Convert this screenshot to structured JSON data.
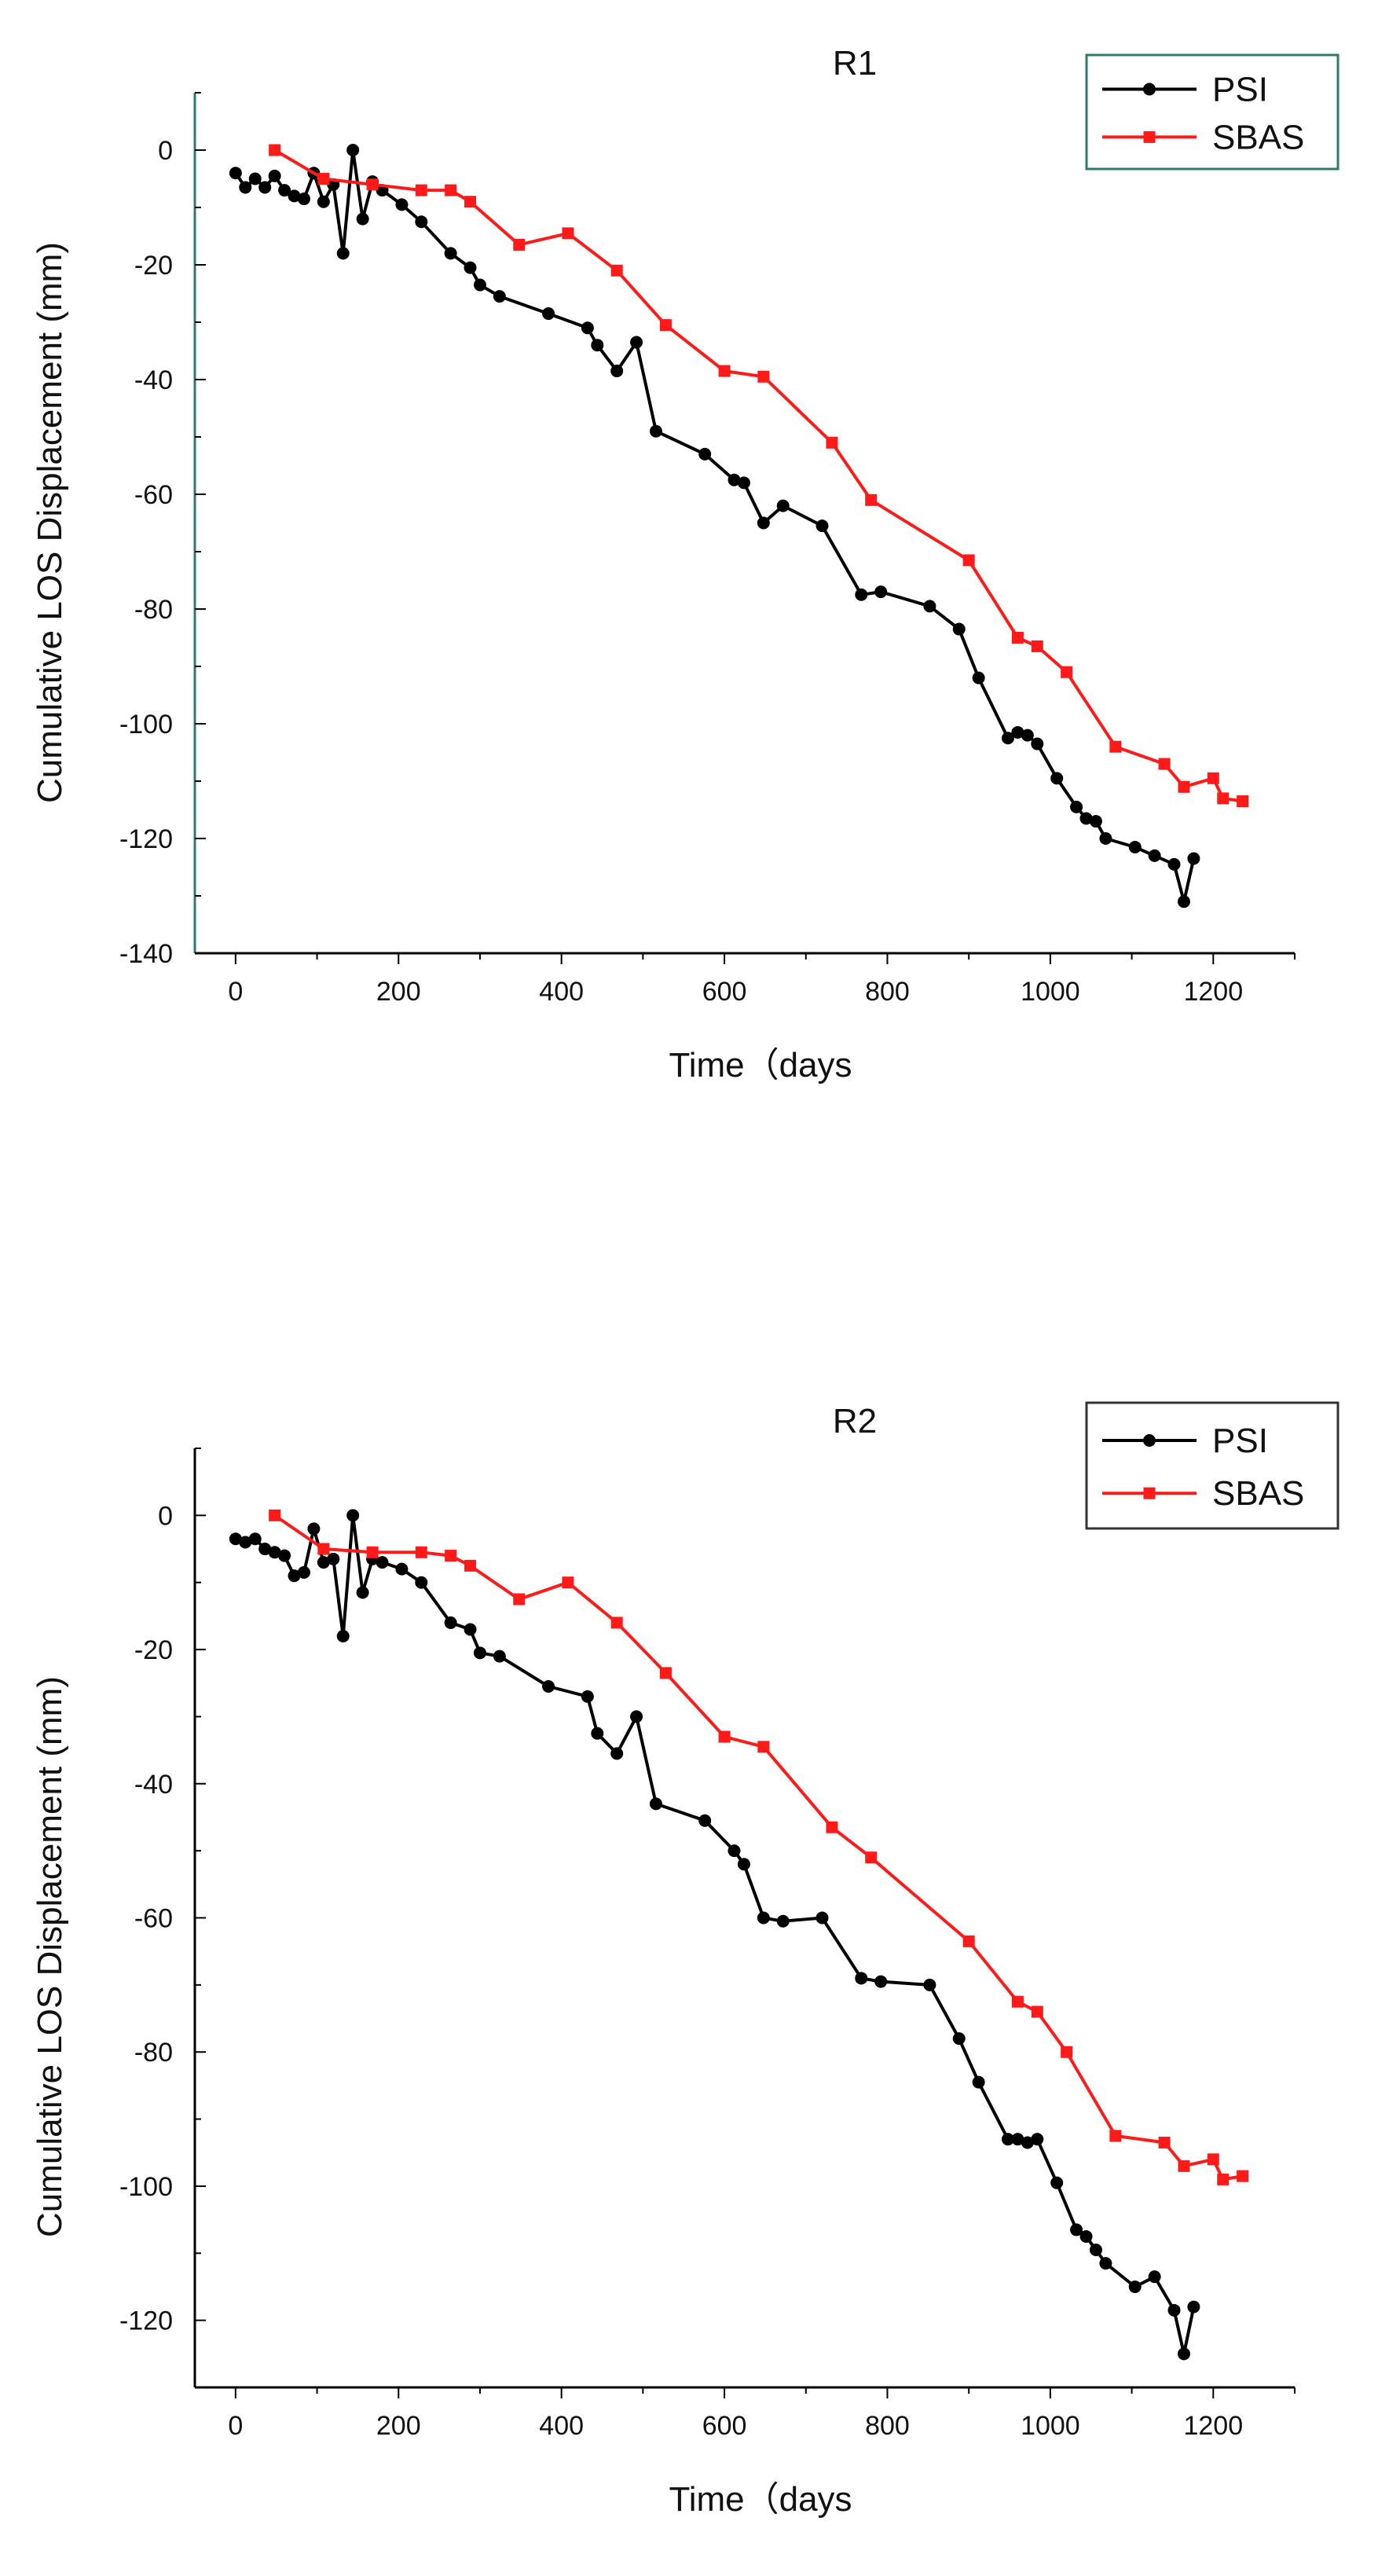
{
  "chart_data": [
    {
      "type": "line",
      "title": "R1",
      "xlabel": "Time（days",
      "ylabel": "Cumulative LOS Displacement (mm)",
      "xlim": [
        -50,
        1300
      ],
      "ylim": [
        -140,
        10
      ],
      "x_ticks": [
        0,
        200,
        400,
        600,
        800,
        1000,
        1200
      ],
      "y_ticks": [
        0,
        -20,
        -40,
        -60,
        -80,
        -100,
        -120,
        -140
      ],
      "legend_position": "top-right",
      "legend_border": "#2f7a6a",
      "series": [
        {
          "name": "PSI",
          "color": "#000000",
          "marker": "circle",
          "x": [
            0,
            12,
            24,
            36,
            48,
            60,
            72,
            84,
            96,
            108,
            120,
            132,
            144,
            156,
            168,
            180,
            204,
            228,
            264,
            288,
            300,
            324,
            384,
            432,
            444,
            468,
            492,
            516,
            576,
            612,
            624,
            648,
            672,
            720,
            768,
            792,
            852,
            888,
            912,
            948,
            960,
            972,
            984,
            1008,
            1032,
            1044,
            1056,
            1068,
            1104,
            1128,
            1152,
            1164,
            1176
          ],
          "y": [
            -4,
            -6.5,
            -5,
            -6.5,
            -4.5,
            -7,
            -8,
            -8.5,
            -4,
            -9,
            -6,
            -18,
            0,
            -12,
            -5.5,
            -7,
            -9.5,
            -12.5,
            -18,
            -20.5,
            -23.5,
            -25.5,
            -28.5,
            -31,
            -34,
            -38.5,
            -33.5,
            -49,
            -53,
            -57.5,
            -58,
            -65,
            -62,
            -65.5,
            -77.5,
            -77,
            -79.5,
            -83.5,
            -92,
            -102.5,
            -101.5,
            -102,
            -103.5,
            -109.5,
            -114.5,
            -116.5,
            -117,
            -120,
            -121.5,
            -123,
            -124.5,
            -131,
            -123.5
          ]
        },
        {
          "name": "SBAS",
          "color": "#ff1a1a",
          "marker": "square",
          "x": [
            48,
            108,
            168,
            228,
            264,
            288,
            348,
            408,
            468,
            528,
            600,
            648,
            732,
            780,
            900,
            960,
            984,
            1020,
            1080,
            1140,
            1164,
            1200,
            1212,
            1236
          ],
          "y": [
            0,
            -5,
            -6,
            -7,
            -7,
            -9,
            -16.5,
            -14.5,
            -21,
            -30.5,
            -38.5,
            -39.5,
            -51,
            -61,
            -71.5,
            -85,
            -86.5,
            -91,
            -104,
            -107,
            -111,
            -109.5,
            -113,
            -113.5
          ]
        }
      ]
    },
    {
      "type": "line",
      "title": "R2",
      "xlabel": "Time（days",
      "ylabel": "Cumulative LOS Displacement (mm)",
      "xlim": [
        -50,
        1300
      ],
      "ylim": [
        -130,
        10
      ],
      "x_ticks": [
        0,
        200,
        400,
        600,
        800,
        1000,
        1200
      ],
      "y_ticks": [
        0,
        -20,
        -40,
        -60,
        -80,
        -100,
        -120
      ],
      "legend_position": "top-right",
      "legend_border": "#333333",
      "series": [
        {
          "name": "PSI",
          "color": "#000000",
          "marker": "circle",
          "x": [
            0,
            12,
            24,
            36,
            48,
            60,
            72,
            84,
            96,
            108,
            120,
            132,
            144,
            156,
            168,
            180,
            204,
            228,
            264,
            288,
            300,
            324,
            384,
            432,
            444,
            468,
            492,
            516,
            576,
            612,
            624,
            648,
            672,
            720,
            768,
            792,
            852,
            888,
            912,
            948,
            960,
            972,
            984,
            1008,
            1032,
            1044,
            1056,
            1068,
            1104,
            1128,
            1152,
            1164,
            1176
          ],
          "y": [
            -3.5,
            -4,
            -3.5,
            -5,
            -5.5,
            -6,
            -9,
            -8.5,
            -2,
            -7,
            -6.5,
            -18,
            0,
            -11.5,
            -6.5,
            -7,
            -8,
            -10,
            -16,
            -17,
            -20.5,
            -21,
            -25.5,
            -27,
            -32.5,
            -35.5,
            -30,
            -43,
            -45.5,
            -50,
            -52,
            -60,
            -60.5,
            -60,
            -69,
            -69.5,
            -70,
            -78,
            -84.5,
            -93,
            -93,
            -93.5,
            -93,
            -99.5,
            -106.5,
            -107.5,
            -109.5,
            -111.5,
            -115,
            -113.5,
            -118.5,
            -125,
            -118
          ]
        },
        {
          "name": "SBAS",
          "color": "#ff1a1a",
          "marker": "square",
          "x": [
            48,
            108,
            168,
            228,
            264,
            288,
            348,
            408,
            468,
            528,
            600,
            648,
            732,
            780,
            900,
            960,
            984,
            1020,
            1080,
            1140,
            1164,
            1200,
            1212,
            1236
          ],
          "y": [
            0,
            -5,
            -5.5,
            -5.5,
            -6,
            -7.5,
            -12.5,
            -10,
            -16,
            -23.5,
            -33,
            -34.5,
            -46.5,
            -51,
            -63.5,
            -72.5,
            -74,
            -80,
            -92.5,
            -93.5,
            -97,
            -96,
            -99,
            -98.5
          ]
        }
      ]
    }
  ]
}
